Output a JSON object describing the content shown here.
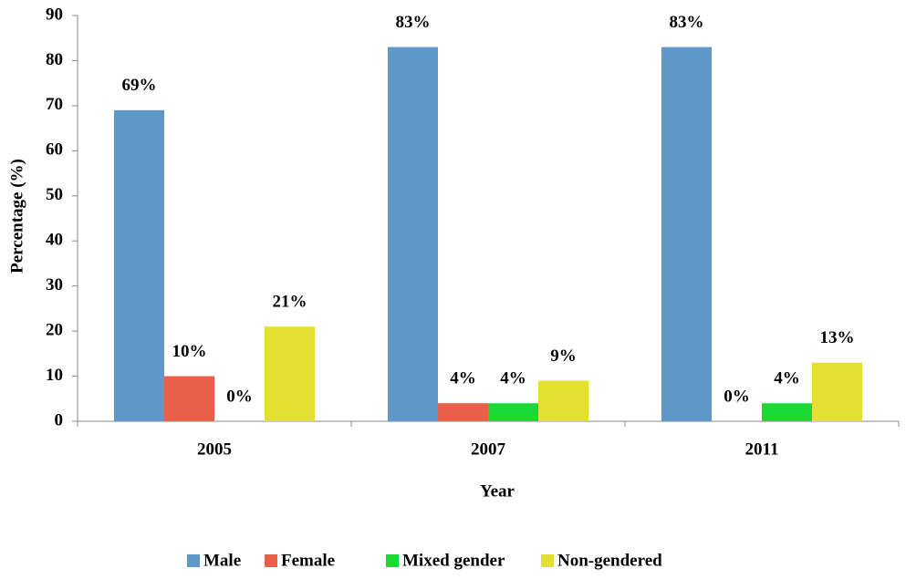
{
  "chart_data": {
    "type": "bar",
    "xlabel": "Year",
    "ylabel": "Percentage (%)",
    "categories": [
      "2005",
      "2007",
      "2011"
    ],
    "series": [
      {
        "name": "Male",
        "color": "#6097c9",
        "values": [
          69,
          83,
          83
        ],
        "value_labels": [
          "69%",
          "83%",
          "83%"
        ]
      },
      {
        "name": "Female",
        "color": "#e9604a",
        "values": [
          10,
          4,
          0
        ],
        "value_labels": [
          "10%",
          "4%",
          "0%"
        ]
      },
      {
        "name": "Mixed gender",
        "color": "#19d936",
        "values": [
          0,
          4,
          4
        ],
        "value_labels": [
          "0%",
          "4%",
          "4%"
        ]
      },
      {
        "name": "Non-gendered",
        "color": "#e4e032",
        "values": [
          21,
          9,
          13
        ],
        "value_labels": [
          "21%",
          "9%",
          "13%"
        ]
      }
    ],
    "ylim": [
      0,
      90
    ],
    "yticks": [
      0,
      10,
      20,
      30,
      40,
      50,
      60,
      70,
      80,
      90
    ],
    "grid": false,
    "legend": "bottom"
  }
}
